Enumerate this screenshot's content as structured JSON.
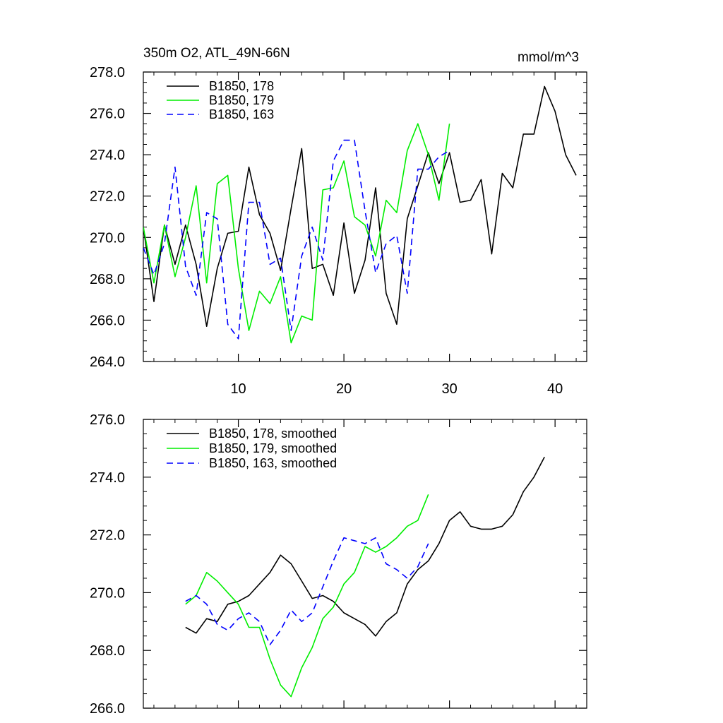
{
  "chart_data": [
    {
      "type": "line",
      "title": "350m O2, ATL_49N-66N",
      "units": "mmol/m^3",
      "xlim": [
        1,
        43
      ],
      "ylim": [
        264,
        278
      ],
      "xticks": [
        10,
        20,
        30,
        40
      ],
      "yticks": [
        264,
        266,
        268,
        270,
        272,
        274,
        276,
        278
      ],
      "ytick_labels": [
        "264.0",
        "266.0",
        "268.0",
        "270.0",
        "272.0",
        "274.0",
        "276.0",
        "278.0"
      ],
      "legend_position": "top-left",
      "series": [
        {
          "name": "B1850, 178",
          "color": "#000000",
          "dash": "solid",
          "x": [
            1,
            2,
            3,
            4,
            5,
            6,
            7,
            8,
            9,
            10,
            11,
            12,
            13,
            14,
            15,
            16,
            17,
            18,
            19,
            20,
            21,
            22,
            23,
            24,
            25,
            26,
            27,
            28,
            29,
            30,
            31,
            32,
            33,
            34,
            35,
            36,
            37,
            38,
            39,
            40,
            41,
            42
          ],
          "y": [
            270.5,
            266.9,
            270.6,
            268.7,
            270.6,
            268.7,
            265.7,
            268.5,
            270.2,
            270.3,
            273.4,
            271.1,
            270.2,
            268.4,
            271.4,
            274.3,
            268.5,
            268.7,
            267.2,
            270.7,
            267.3,
            268.9,
            272.4,
            267.3,
            265.8,
            270.9,
            272.5,
            274.1,
            272.6,
            274.1,
            271.7,
            271.8,
            272.8,
            269.2,
            273.1,
            272.4,
            275.0,
            275.0,
            277.3,
            276.1,
            274.0,
            273.0
          ]
        },
        {
          "name": "B1850, 179",
          "color": "#00ee00",
          "dash": "solid",
          "x": [
            1,
            2,
            3,
            4,
            5,
            6,
            7,
            8,
            9,
            10,
            11,
            12,
            13,
            14,
            15,
            16,
            17,
            18,
            19,
            20,
            21,
            22,
            23,
            24,
            25,
            26,
            27,
            28,
            29,
            30
          ],
          "y": [
            270.5,
            267.8,
            270.6,
            268.1,
            270.0,
            272.5,
            267.8,
            272.6,
            273.0,
            268.5,
            265.5,
            267.4,
            266.8,
            268.1,
            264.9,
            266.2,
            266.0,
            272.3,
            272.4,
            273.7,
            271.0,
            270.6,
            269.1,
            271.8,
            271.2,
            274.2,
            275.5,
            274.0,
            271.8,
            275.5
          ]
        },
        {
          "name": "B1850, 163",
          "color": "#0000ff",
          "dash": "dashed",
          "x": [
            1,
            2,
            3,
            4,
            5,
            6,
            7,
            8,
            9,
            10,
            11,
            12,
            13,
            14,
            15,
            16,
            17,
            18,
            19,
            20,
            21,
            22,
            23,
            24,
            25,
            26,
            27,
            28,
            29,
            30
          ],
          "y": [
            269.5,
            268.2,
            269.7,
            273.4,
            268.6,
            267.2,
            271.2,
            270.9,
            265.8,
            265.1,
            271.7,
            271.7,
            268.7,
            269.0,
            265.5,
            269.1,
            270.5,
            268.9,
            273.7,
            274.7,
            274.7,
            271.3,
            268.3,
            269.7,
            270.1,
            267.3,
            273.3,
            273.3,
            273.9,
            274.2
          ]
        }
      ]
    },
    {
      "type": "line",
      "xlim": [
        1,
        43
      ],
      "ylim": [
        266,
        276
      ],
      "xticks": [
        10,
        20,
        30,
        40
      ],
      "yticks": [
        266,
        268,
        270,
        272,
        274,
        276
      ],
      "ytick_labels": [
        "266.0",
        "268.0",
        "270.0",
        "272.0",
        "274.0",
        "276.0"
      ],
      "legend_position": "top-left",
      "series": [
        {
          "name": "B1850, 178, smoothed",
          "color": "#000000",
          "dash": "solid",
          "x": [
            5,
            6,
            7,
            8,
            9,
            10,
            11,
            12,
            13,
            14,
            15,
            16,
            17,
            18,
            19,
            20,
            21,
            22,
            23,
            24,
            25,
            26,
            27,
            28,
            29,
            30,
            31,
            32,
            33,
            34,
            35,
            36,
            37,
            38,
            39
          ],
          "y": [
            268.8,
            268.6,
            269.1,
            269.0,
            269.6,
            269.7,
            269.9,
            270.3,
            270.7,
            271.3,
            271.0,
            270.4,
            269.8,
            269.9,
            269.7,
            269.3,
            269.1,
            268.9,
            268.5,
            269.0,
            269.3,
            270.3,
            270.8,
            271.1,
            271.7,
            272.5,
            272.8,
            272.3,
            272.2,
            272.2,
            272.3,
            272.7,
            273.5,
            274.0,
            274.7
          ]
        },
        {
          "name": "B1850, 179, smoothed",
          "color": "#00ee00",
          "dash": "solid",
          "x": [
            5,
            6,
            7,
            8,
            9,
            10,
            11,
            12,
            13,
            14,
            15,
            16,
            17,
            18,
            19,
            20,
            21,
            22,
            23,
            24,
            25,
            26,
            27,
            28
          ],
          "y": [
            269.6,
            269.9,
            270.7,
            270.4,
            270.0,
            269.6,
            268.8,
            268.8,
            267.7,
            266.8,
            266.4,
            267.4,
            268.1,
            269.1,
            269.5,
            270.3,
            270.7,
            271.6,
            271.4,
            271.6,
            271.9,
            272.3,
            272.5,
            273.4
          ]
        },
        {
          "name": "B1850, 163, smoothed",
          "color": "#0000ff",
          "dash": "dashed",
          "x": [
            5,
            6,
            7,
            8,
            9,
            10,
            11,
            12,
            13,
            14,
            15,
            16,
            17,
            18,
            19,
            20,
            21,
            22,
            23,
            24,
            25,
            26,
            27,
            28
          ],
          "y": [
            269.7,
            269.9,
            269.6,
            268.9,
            268.7,
            269.1,
            269.3,
            269.0,
            268.2,
            268.7,
            269.4,
            269.0,
            269.3,
            270.2,
            271.1,
            271.9,
            271.8,
            271.7,
            271.9,
            271.0,
            270.8,
            270.5,
            270.9,
            271.7
          ]
        }
      ]
    }
  ]
}
